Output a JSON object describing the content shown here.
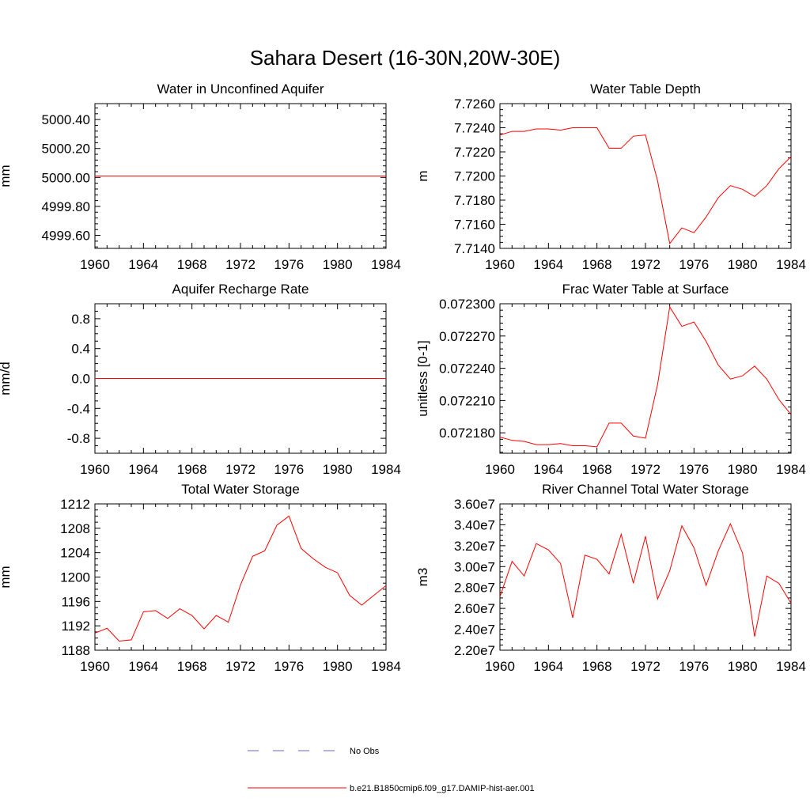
{
  "figure": {
    "title": "Sahara Desert (16-30N,20W-30E)",
    "line_color": "#ff0000",
    "obs_color": "#6b6bb0"
  },
  "legend": {
    "obs_label": "No Obs",
    "model_label": "b.e21.B1850cmip6.f09_g17.DAMIP-hist-aer.001"
  },
  "chart_data": [
    {
      "type": "line",
      "title": "Water in Unconfined Aquifer",
      "ylabel": "mm",
      "xlim": [
        1960,
        1984
      ],
      "ylim": [
        4999.51,
        5000.51
      ],
      "xticks": [
        1960,
        1964,
        1968,
        1972,
        1976,
        1980,
        1984
      ],
      "xtick_labels": [
        "1960",
        "1964",
        "1968",
        "1972",
        "1976",
        "1980",
        "1984"
      ],
      "yticks": [
        4999.6,
        4999.8,
        5000.0,
        5000.2,
        5000.4
      ],
      "ytick_labels": [
        "4999.60",
        "4999.80",
        "5000.00",
        "5000.20",
        "5000.40"
      ],
      "ymin_count": 5,
      "x": [
        1960,
        1961,
        1962,
        1963,
        1964,
        1965,
        1966,
        1967,
        1968,
        1969,
        1970,
        1971,
        1972,
        1973,
        1974,
        1975,
        1976,
        1977,
        1978,
        1979,
        1980,
        1981,
        1982,
        1983,
        1984
      ],
      "y": [
        5000.01,
        5000.01,
        5000.01,
        5000.01,
        5000.01,
        5000.01,
        5000.01,
        5000.01,
        5000.01,
        5000.01,
        5000.01,
        5000.01,
        5000.01,
        5000.01,
        5000.01,
        5000.01,
        5000.01,
        5000.01,
        5000.01,
        5000.01,
        5000.01,
        5000.01,
        5000.01,
        5000.01,
        5000.01
      ]
    },
    {
      "type": "line",
      "title": "Water Table Depth",
      "ylabel": "m",
      "xlim": [
        1960,
        1984
      ],
      "ylim": [
        7.714,
        7.726
      ],
      "xticks": [
        1960,
        1964,
        1968,
        1972,
        1976,
        1980,
        1984
      ],
      "xtick_labels": [
        "1960",
        "1964",
        "1968",
        "1972",
        "1976",
        "1980",
        "1984"
      ],
      "yticks": [
        7.714,
        7.716,
        7.718,
        7.72,
        7.722,
        7.724,
        7.726
      ],
      "ytick_labels": [
        "7.7140",
        "7.7160",
        "7.7180",
        "7.7200",
        "7.7220",
        "7.7240",
        "7.7260"
      ],
      "ymin_count": 4,
      "x": [
        1960,
        1961,
        1962,
        1963,
        1964,
        1965,
        1966,
        1967,
        1968,
        1969,
        1970,
        1971,
        1972,
        1973,
        1974,
        1975,
        1976,
        1977,
        1978,
        1979,
        1980,
        1981,
        1982,
        1983,
        1984
      ],
      "y": [
        7.7234,
        7.7237,
        7.7237,
        7.7239,
        7.7239,
        7.7238,
        7.724,
        7.724,
        7.724,
        7.7223,
        7.7223,
        7.7233,
        7.7234,
        7.7196,
        7.7144,
        7.7157,
        7.7153,
        7.7166,
        7.7182,
        7.7192,
        7.7189,
        7.7183,
        7.7192,
        7.7206,
        7.7216
      ]
    },
    {
      "type": "line",
      "title": "Aquifer Recharge Rate",
      "ylabel": "mm/d",
      "xlim": [
        1960,
        1984
      ],
      "ylim": [
        -1.0,
        1.0
      ],
      "xticks": [
        1960,
        1964,
        1968,
        1972,
        1976,
        1980,
        1984
      ],
      "xtick_labels": [
        "1960",
        "1964",
        "1968",
        "1972",
        "1976",
        "1980",
        "1984"
      ],
      "yticks": [
        -0.8,
        -0.4,
        0.0,
        0.4,
        0.8
      ],
      "ytick_labels": [
        "-0.8",
        "-0.4",
        "0.0",
        "0.4",
        "0.8"
      ],
      "ymin_count": 4,
      "x": [
        1960,
        1961,
        1962,
        1963,
        1964,
        1965,
        1966,
        1967,
        1968,
        1969,
        1970,
        1971,
        1972,
        1973,
        1974,
        1975,
        1976,
        1977,
        1978,
        1979,
        1980,
        1981,
        1982,
        1983,
        1984
      ],
      "y": [
        0,
        0,
        0,
        0,
        0,
        0,
        0,
        0,
        0,
        0,
        0,
        0,
        0,
        0,
        0,
        0,
        0,
        0,
        0,
        0,
        0,
        0,
        0,
        0,
        0
      ]
    },
    {
      "type": "line",
      "title": "Frac Water Table at Surface",
      "ylabel": "unitless [0-1]",
      "xlim": [
        1960,
        1984
      ],
      "ylim": [
        0.072161,
        0.0723
      ],
      "xticks": [
        1960,
        1964,
        1968,
        1972,
        1976,
        1980,
        1984
      ],
      "xtick_labels": [
        "1960",
        "1964",
        "1968",
        "1972",
        "1976",
        "1980",
        "1984"
      ],
      "yticks": [
        0.07218,
        0.07221,
        0.07224,
        0.07227,
        0.0723
      ],
      "ytick_labels": [
        "0.072180",
        "0.072210",
        "0.072240",
        "0.072270",
        "0.072300"
      ],
      "ymin_count": 5,
      "x": [
        1960,
        1961,
        1962,
        1963,
        1964,
        1965,
        1966,
        1967,
        1968,
        1969,
        1970,
        1971,
        1972,
        1973,
        1974,
        1975,
        1976,
        1977,
        1978,
        1979,
        1980,
        1981,
        1982,
        1983,
        1984
      ],
      "y": [
        0.072176,
        0.072173,
        0.072172,
        0.072169,
        0.072169,
        0.07217,
        0.072168,
        0.072168,
        0.072167,
        0.072189,
        0.072189,
        0.072177,
        0.072175,
        0.072225,
        0.072297,
        0.072279,
        0.072283,
        0.072265,
        0.072243,
        0.07223,
        0.072233,
        0.072242,
        0.07223,
        0.072211,
        0.072197
      ]
    },
    {
      "type": "line",
      "title": "Total Water Storage",
      "ylabel": "mm",
      "xlim": [
        1960,
        1984
      ],
      "ylim": [
        1188,
        1212
      ],
      "xticks": [
        1960,
        1964,
        1968,
        1972,
        1976,
        1980,
        1984
      ],
      "xtick_labels": [
        "1960",
        "1964",
        "1968",
        "1972",
        "1976",
        "1980",
        "1984"
      ],
      "yticks": [
        1188,
        1192,
        1196,
        1200,
        1204,
        1208,
        1212
      ],
      "ytick_labels": [
        "1188",
        "1192",
        "1196",
        "1200",
        "1204",
        "1208",
        "1212"
      ],
      "ymin_count": 4,
      "x": [
        1960,
        1961,
        1962,
        1963,
        1964,
        1965,
        1966,
        1967,
        1968,
        1969,
        1970,
        1971,
        1972,
        1973,
        1974,
        1975,
        1976,
        1977,
        1978,
        1979,
        1980,
        1981,
        1982,
        1983,
        1984
      ],
      "y": [
        1190.8,
        1191.6,
        1189.5,
        1189.7,
        1194.3,
        1194.5,
        1193.2,
        1194.8,
        1193.7,
        1191.5,
        1193.7,
        1192.6,
        1198.7,
        1203.4,
        1204.3,
        1208.5,
        1210.0,
        1204.7,
        1203.0,
        1201.6,
        1200.7,
        1197.0,
        1195.4,
        1197.0,
        1198.6
      ]
    },
    {
      "type": "line",
      "title": "River Channel Total Water Storage",
      "ylabel": "m3",
      "xlim": [
        1960,
        1984
      ],
      "ylim": [
        22000000,
        36000000
      ],
      "xticks": [
        1960,
        1964,
        1968,
        1972,
        1976,
        1980,
        1984
      ],
      "xtick_labels": [
        "1960",
        "1964",
        "1968",
        "1972",
        "1976",
        "1980",
        "1984"
      ],
      "yticks": [
        22000000,
        24000000,
        26000000,
        28000000,
        30000000,
        32000000,
        34000000,
        36000000
      ],
      "ytick_labels": [
        "2.20e7",
        "2.40e7",
        "2.60e7",
        "2.80e7",
        "3.00e7",
        "3.20e7",
        "3.40e7",
        "3.60e7"
      ],
      "ymin_count": 4,
      "x": [
        1960,
        1961,
        1962,
        1963,
        1964,
        1965,
        1966,
        1967,
        1968,
        1969,
        1970,
        1971,
        1972,
        1973,
        1974,
        1975,
        1976,
        1977,
        1978,
        1979,
        1980,
        1981,
        1982,
        1983,
        1984
      ],
      "y": [
        27100000,
        30500000,
        29100000,
        32200000,
        31600000,
        30300000,
        25100000,
        31100000,
        30700000,
        29300000,
        33100000,
        28400000,
        32900000,
        26900000,
        29600000,
        33900000,
        31800000,
        28200000,
        31500000,
        34100000,
        31300000,
        23300000,
        29100000,
        28400000,
        26500000
      ]
    }
  ]
}
